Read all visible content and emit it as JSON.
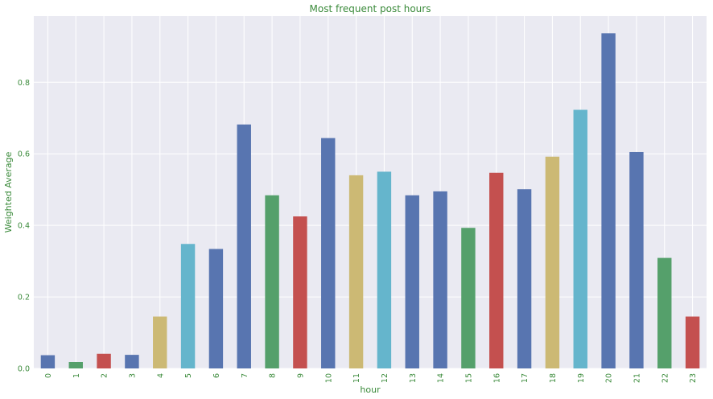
{
  "chart_data": {
    "type": "bar",
    "title": "Most frequent post hours",
    "xlabel": "hour",
    "ylabel": "Weighted Average",
    "categories": [
      "0",
      "1",
      "2",
      "3",
      "4",
      "5",
      "6",
      "7",
      "8",
      "9",
      "10",
      "11",
      "12",
      "13",
      "14",
      "15",
      "16",
      "17",
      "18",
      "19",
      "20",
      "21",
      "22",
      "23"
    ],
    "values": [
      0.037,
      0.018,
      0.041,
      0.038,
      0.145,
      0.348,
      0.334,
      0.682,
      0.484,
      0.425,
      0.644,
      0.54,
      0.55,
      0.484,
      0.495,
      0.393,
      0.547,
      0.501,
      0.592,
      0.723,
      0.937,
      0.605,
      0.309,
      0.145
    ],
    "ylim": [
      0,
      0.985
    ],
    "yticks": [
      0.0,
      0.2,
      0.4,
      0.6,
      0.8
    ],
    "ytick_labels": [
      "0.0",
      "0.2",
      "0.4",
      "0.6",
      "0.8"
    ],
    "grid": true,
    "background_color": "#eaeaf2",
    "grid_color": "#ffffff",
    "text_color": "#3a8a3a",
    "bar_colors": [
      "#5875b0",
      "#55a06b",
      "#c4504f",
      "#8274b2",
      "#ccb974",
      "#65b5cc"
    ],
    "bar_color_sequence": [
      0,
      1,
      2,
      0,
      4,
      5,
      0,
      0,
      1,
      2,
      0,
      4,
      5,
      0,
      0,
      1,
      2,
      0,
      4,
      5,
      0,
      0,
      1,
      2
    ]
  }
}
